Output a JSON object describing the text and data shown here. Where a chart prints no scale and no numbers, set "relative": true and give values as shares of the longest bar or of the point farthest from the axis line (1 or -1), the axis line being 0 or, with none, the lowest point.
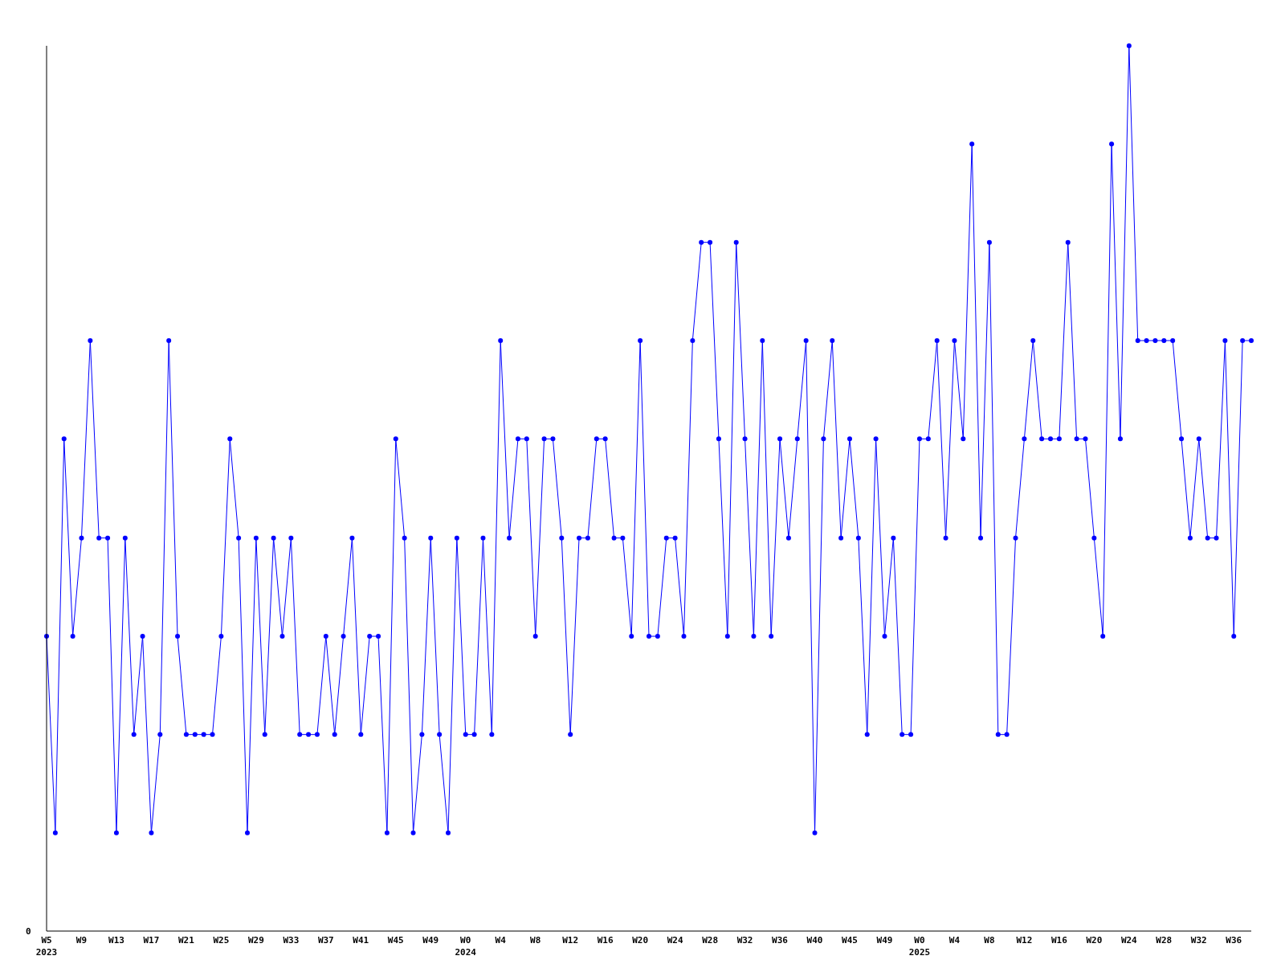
{
  "chart_data": {
    "type": "line",
    "relative": true,
    "color": "#0000ff",
    "marker": "circle",
    "grid": false,
    "annotations": [
      "0"
    ],
    "categories": [
      "W5\n2023",
      null,
      null,
      null,
      "W9",
      null,
      null,
      null,
      "W13",
      null,
      null,
      null,
      "W17",
      null,
      null,
      null,
      "W21",
      null,
      null,
      null,
      "W25",
      null,
      null,
      null,
      "W29",
      null,
      null,
      null,
      "W33",
      null,
      null,
      null,
      "W37",
      null,
      null,
      null,
      "W41",
      null,
      null,
      null,
      "W45",
      null,
      null,
      null,
      "W49",
      null,
      null,
      null,
      "W0\n2024",
      null,
      null,
      null,
      "W4",
      null,
      null,
      null,
      "W8",
      null,
      null,
      null,
      "W12",
      null,
      null,
      null,
      "W16",
      null,
      null,
      null,
      "W20",
      null,
      null,
      null,
      "W24",
      null,
      null,
      null,
      "W28",
      null,
      null,
      null,
      "W32",
      null,
      null,
      null,
      "W36",
      null,
      null,
      null,
      "W40",
      null,
      null,
      null,
      "W45",
      null,
      null,
      null,
      "W49",
      null,
      null,
      null,
      "W0\n2025",
      null,
      null,
      null,
      "W4",
      null,
      null,
      null,
      "W8",
      null,
      null,
      null,
      "W12",
      null,
      null,
      null,
      "W16",
      null,
      null,
      null,
      "W20",
      null,
      null,
      null,
      "W24",
      null,
      null,
      null,
      "W28",
      null,
      null,
      null,
      "W32",
      null,
      null,
      null,
      "W36",
      null,
      null
    ],
    "values": [
      0.333,
      0.111,
      0.556,
      0.333,
      0.444,
      0.667,
      0.444,
      0.444,
      0.111,
      0.444,
      0.222,
      0.333,
      0.111,
      0.222,
      0.667,
      0.333,
      0.222,
      0.222,
      0.222,
      0.222,
      0.333,
      0.556,
      0.444,
      0.111,
      0.444,
      0.222,
      0.444,
      0.333,
      0.444,
      0.222,
      0.222,
      0.222,
      0.333,
      0.222,
      0.333,
      0.444,
      0.222,
      0.333,
      0.333,
      0.111,
      0.556,
      0.444,
      0.111,
      0.222,
      0.444,
      0.222,
      0.111,
      0.444,
      0.222,
      0.222,
      0.444,
      0.222,
      0.667,
      0.444,
      0.556,
      0.556,
      0.333,
      0.556,
      0.556,
      0.444,
      0.222,
      0.444,
      0.444,
      0.556,
      0.556,
      0.444,
      0.444,
      0.333,
      0.667,
      0.333,
      0.333,
      0.444,
      0.444,
      0.333,
      0.667,
      0.778,
      0.778,
      0.556,
      0.333,
      0.778,
      0.556,
      0.333,
      0.667,
      0.333,
      0.556,
      0.444,
      0.556,
      0.667,
      0.111,
      0.556,
      0.667,
      0.444,
      0.556,
      0.444,
      0.222,
      0.556,
      0.333,
      0.444,
      0.222,
      0.222,
      0.556,
      0.556,
      0.667,
      0.444,
      0.667,
      0.556,
      0.889,
      0.444,
      0.778,
      0.222,
      0.222,
      0.444,
      0.556,
      0.667,
      0.556,
      0.556,
      0.556,
      0.778,
      0.556,
      0.556,
      0.444,
      0.333,
      0.889,
      0.556,
      1,
      0.667,
      0.667,
      0.667,
      0.667,
      0.667,
      0.556,
      0.444,
      0.556,
      0.444,
      0.444,
      0.667,
      0.333,
      0.667,
      0.667
    ]
  }
}
